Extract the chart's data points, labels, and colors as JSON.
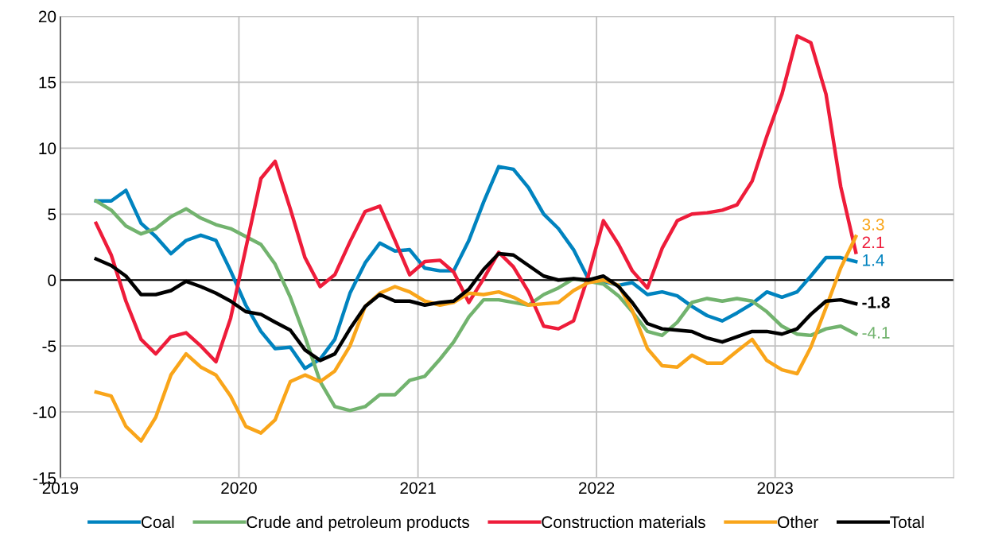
{
  "chart_data": {
    "type": "line",
    "x": [
      "2019-03-15",
      "2019-04-15",
      "2019-05-15",
      "2019-06-15",
      "2019-07-15",
      "2019-08-15",
      "2019-09-15",
      "2019-10-15",
      "2019-11-15",
      "2019-12-15",
      "2020-01-15",
      "2020-02-15",
      "2020-03-15",
      "2020-04-15",
      "2020-05-15",
      "2020-06-15",
      "2020-07-15",
      "2020-08-15",
      "2020-09-15",
      "2020-10-15",
      "2020-11-15",
      "2020-12-15",
      "2021-01-15",
      "2021-02-15",
      "2021-03-15",
      "2021-04-15",
      "2021-05-15",
      "2021-06-15",
      "2021-07-15",
      "2021-08-15",
      "2021-09-15",
      "2021-10-15",
      "2021-11-15",
      "2021-12-15",
      "2022-01-15",
      "2022-02-15",
      "2022-03-15",
      "2022-04-15",
      "2022-05-15",
      "2022-06-15",
      "2022-07-15",
      "2022-08-15",
      "2022-09-15",
      "2022-10-15",
      "2022-11-15",
      "2022-12-15",
      "2023-01-15",
      "2023-02-15",
      "2023-03-15",
      "2023-04-15",
      "2023-05-15",
      "2023-06-15"
    ],
    "series": [
      {
        "name": "Coal",
        "color": "#0083bf",
        "values": [
          6.0,
          6.0,
          6.8,
          4.3,
          3.3,
          2.0,
          3.0,
          3.4,
          3.0,
          0.7,
          -1.9,
          -3.9,
          -5.2,
          -5.1,
          -6.7,
          -6.0,
          -4.5,
          -1.0,
          1.3,
          2.8,
          2.2,
          2.3,
          0.9,
          0.7,
          0.7,
          3.0,
          5.9,
          8.6,
          8.4,
          7.0,
          5.0,
          3.9,
          2.3,
          0.1,
          -0.1,
          -0.4,
          -0.2,
          -1.1,
          -0.9,
          -1.2,
          -2.0,
          -2.7,
          -3.1,
          -2.5,
          -1.8,
          -0.9,
          -1.3,
          -0.9,
          0.3,
          1.7,
          1.7,
          1.4
        ],
        "value_labels": [
          null,
          null,
          null,
          null,
          null,
          null,
          null,
          null,
          null,
          null,
          null,
          null,
          null,
          null,
          null,
          null,
          null,
          null,
          null,
          null,
          null,
          null,
          null,
          null,
          null,
          null,
          null,
          null,
          null,
          null,
          null,
          null,
          null,
          null,
          null,
          null,
          null,
          null,
          null,
          null,
          null,
          null,
          null,
          null,
          null,
          null,
          null,
          null,
          null,
          null,
          null,
          "1.4"
        ]
      },
      {
        "name": "Crude and petroleum products",
        "color": "#72b36e",
        "values": [
          6.0,
          5.3,
          4.1,
          3.5,
          3.9,
          4.8,
          5.4,
          4.7,
          4.2,
          3.9,
          3.3,
          2.7,
          1.2,
          -1.3,
          -4.3,
          -7.7,
          -9.6,
          -9.9,
          -9.6,
          -8.7,
          -8.7,
          -7.6,
          -7.3,
          -6.0,
          -4.7,
          -2.8,
          -1.5,
          -1.5,
          -1.7,
          -1.9,
          -1.1,
          -0.6,
          0.1,
          -0.1,
          -0.3,
          -1.2,
          -2.4,
          -3.9,
          -4.2,
          -3.2,
          -1.7,
          -1.4,
          -1.6,
          -1.4,
          -1.6,
          -2.4,
          -3.5,
          -4.1,
          -4.2,
          -3.7,
          -3.5,
          -4.1
        ],
        "value_labels": [
          null,
          null,
          null,
          null,
          null,
          null,
          null,
          null,
          null,
          null,
          null,
          null,
          null,
          null,
          null,
          null,
          null,
          null,
          null,
          null,
          null,
          null,
          null,
          null,
          null,
          null,
          null,
          null,
          null,
          null,
          null,
          null,
          null,
          null,
          null,
          null,
          null,
          null,
          null,
          null,
          null,
          null,
          null,
          null,
          null,
          null,
          null,
          null,
          null,
          null,
          null,
          "-4.1"
        ]
      },
      {
        "name": "Construction materials",
        "color": "#ee1c3a",
        "values": [
          4.3,
          1.9,
          -1.6,
          -4.5,
          -5.6,
          -4.3,
          -4.0,
          -5.0,
          -6.2,
          -2.9,
          2.4,
          7.7,
          9.0,
          5.4,
          1.7,
          -0.5,
          0.4,
          2.9,
          5.2,
          5.6,
          3.0,
          0.4,
          1.4,
          1.5,
          0.6,
          -1.7,
          0.1,
          2.1,
          1.0,
          -0.9,
          -3.5,
          -3.7,
          -3.1,
          0.3,
          4.5,
          2.7,
          0.7,
          -0.6,
          2.4,
          4.5,
          5.0,
          5.1,
          5.3,
          5.7,
          7.5,
          10.9,
          14.1,
          18.5,
          18.0,
          14.1,
          7.1,
          2.1
        ],
        "value_labels": [
          null,
          null,
          null,
          null,
          null,
          null,
          null,
          null,
          null,
          null,
          null,
          null,
          null,
          null,
          null,
          null,
          null,
          null,
          null,
          null,
          null,
          null,
          null,
          null,
          null,
          null,
          null,
          null,
          null,
          null,
          null,
          null,
          null,
          null,
          null,
          null,
          null,
          null,
          null,
          null,
          null,
          null,
          null,
          null,
          null,
          null,
          null,
          null,
          null,
          null,
          null,
          "2.1"
        ]
      },
      {
        "name": "Other",
        "color": "#f9a51a",
        "values": [
          -8.5,
          -8.8,
          -11.1,
          -12.2,
          -10.4,
          -7.2,
          -5.6,
          -6.6,
          -7.2,
          -8.8,
          -11.1,
          -11.6,
          -10.6,
          -7.7,
          -7.2,
          -7.7,
          -6.9,
          -5.0,
          -2.0,
          -1.0,
          -0.5,
          -0.9,
          -1.6,
          -1.9,
          -1.7,
          -1.0,
          -1.1,
          -0.9,
          -1.3,
          -1.9,
          -1.8,
          -1.7,
          -0.8,
          -0.2,
          0.0,
          -0.4,
          -2.3,
          -5.2,
          -6.5,
          -6.6,
          -5.7,
          -6.3,
          -6.3,
          -5.4,
          -4.5,
          -6.1,
          -6.8,
          -7.1,
          -5.1,
          -2.1,
          0.9,
          3.3
        ],
        "value_labels": [
          null,
          null,
          null,
          null,
          null,
          null,
          null,
          null,
          null,
          null,
          null,
          null,
          null,
          null,
          null,
          null,
          null,
          null,
          null,
          null,
          null,
          null,
          null,
          null,
          null,
          null,
          null,
          null,
          null,
          null,
          null,
          null,
          null,
          null,
          null,
          null,
          null,
          null,
          null,
          null,
          null,
          null,
          null,
          null,
          null,
          null,
          null,
          null,
          null,
          null,
          null,
          "3.3"
        ]
      },
      {
        "name": "Total",
        "color": "#000000",
        "values": [
          1.6,
          1.1,
          0.3,
          -1.1,
          -1.1,
          -0.8,
          -0.1,
          -0.5,
          -1.0,
          -1.6,
          -2.4,
          -2.6,
          -3.2,
          -3.8,
          -5.3,
          -6.1,
          -5.6,
          -3.7,
          -2.0,
          -1.1,
          -1.6,
          -1.6,
          -1.9,
          -1.7,
          -1.6,
          -0.7,
          0.8,
          2.0,
          1.9,
          1.1,
          0.3,
          0.0,
          0.1,
          0.0,
          0.3,
          -0.5,
          -1.7,
          -3.3,
          -3.7,
          -3.8,
          -3.9,
          -4.4,
          -4.7,
          -4.3,
          -3.9,
          -3.9,
          -4.1,
          -3.7,
          -2.6,
          -1.6,
          -1.5,
          -1.8
        ],
        "value_labels": [
          null,
          null,
          null,
          null,
          null,
          null,
          null,
          null,
          null,
          null,
          null,
          null,
          null,
          null,
          null,
          null,
          null,
          null,
          null,
          null,
          null,
          null,
          null,
          null,
          null,
          null,
          null,
          null,
          null,
          null,
          null,
          null,
          null,
          null,
          null,
          null,
          null,
          null,
          null,
          null,
          null,
          null,
          null,
          null,
          null,
          null,
          null,
          null,
          null,
          null,
          null,
          "-1.8"
        ]
      }
    ],
    "xlim": [
      "2019",
      "2024"
    ],
    "xticks": [
      "2019",
      "2020",
      "2021",
      "2022",
      "2023"
    ],
    "ylim": [
      -15,
      20
    ],
    "yticks": [
      -15,
      -10,
      -5,
      0,
      5,
      10,
      15,
      20
    ],
    "ref_lines": [
      {
        "axis": "y",
        "value": 0,
        "color": "#000000"
      }
    ],
    "grid": true,
    "legend": "bottom",
    "marker": "none",
    "line_style": "solid"
  }
}
